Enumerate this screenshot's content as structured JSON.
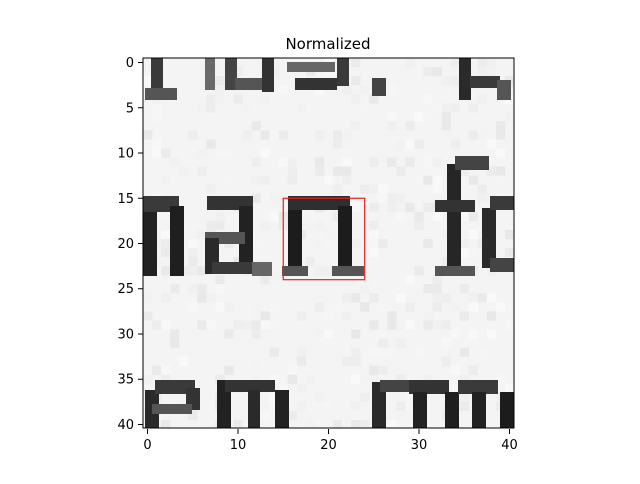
{
  "figure": {
    "title": "Normalized"
  },
  "image": {
    "grid_size": [
      41,
      41
    ],
    "visible_text_fragments": [
      "us.",
      "nan fo",
      "em rem"
    ]
  },
  "axes": {
    "x_ticks": [
      0,
      10,
      20,
      30,
      40
    ],
    "y_ticks": [
      0,
      5,
      10,
      15,
      20,
      25,
      30,
      35,
      40
    ]
  },
  "highlight": {
    "label": "selected-glyph-box",
    "x_range": [
      15,
      24
    ],
    "y_range": [
      15,
      24
    ],
    "color": "#e8201f"
  },
  "colors": {
    "background": "#f4f4f4",
    "ink": "#1c1c1c",
    "frame": "#000000"
  }
}
